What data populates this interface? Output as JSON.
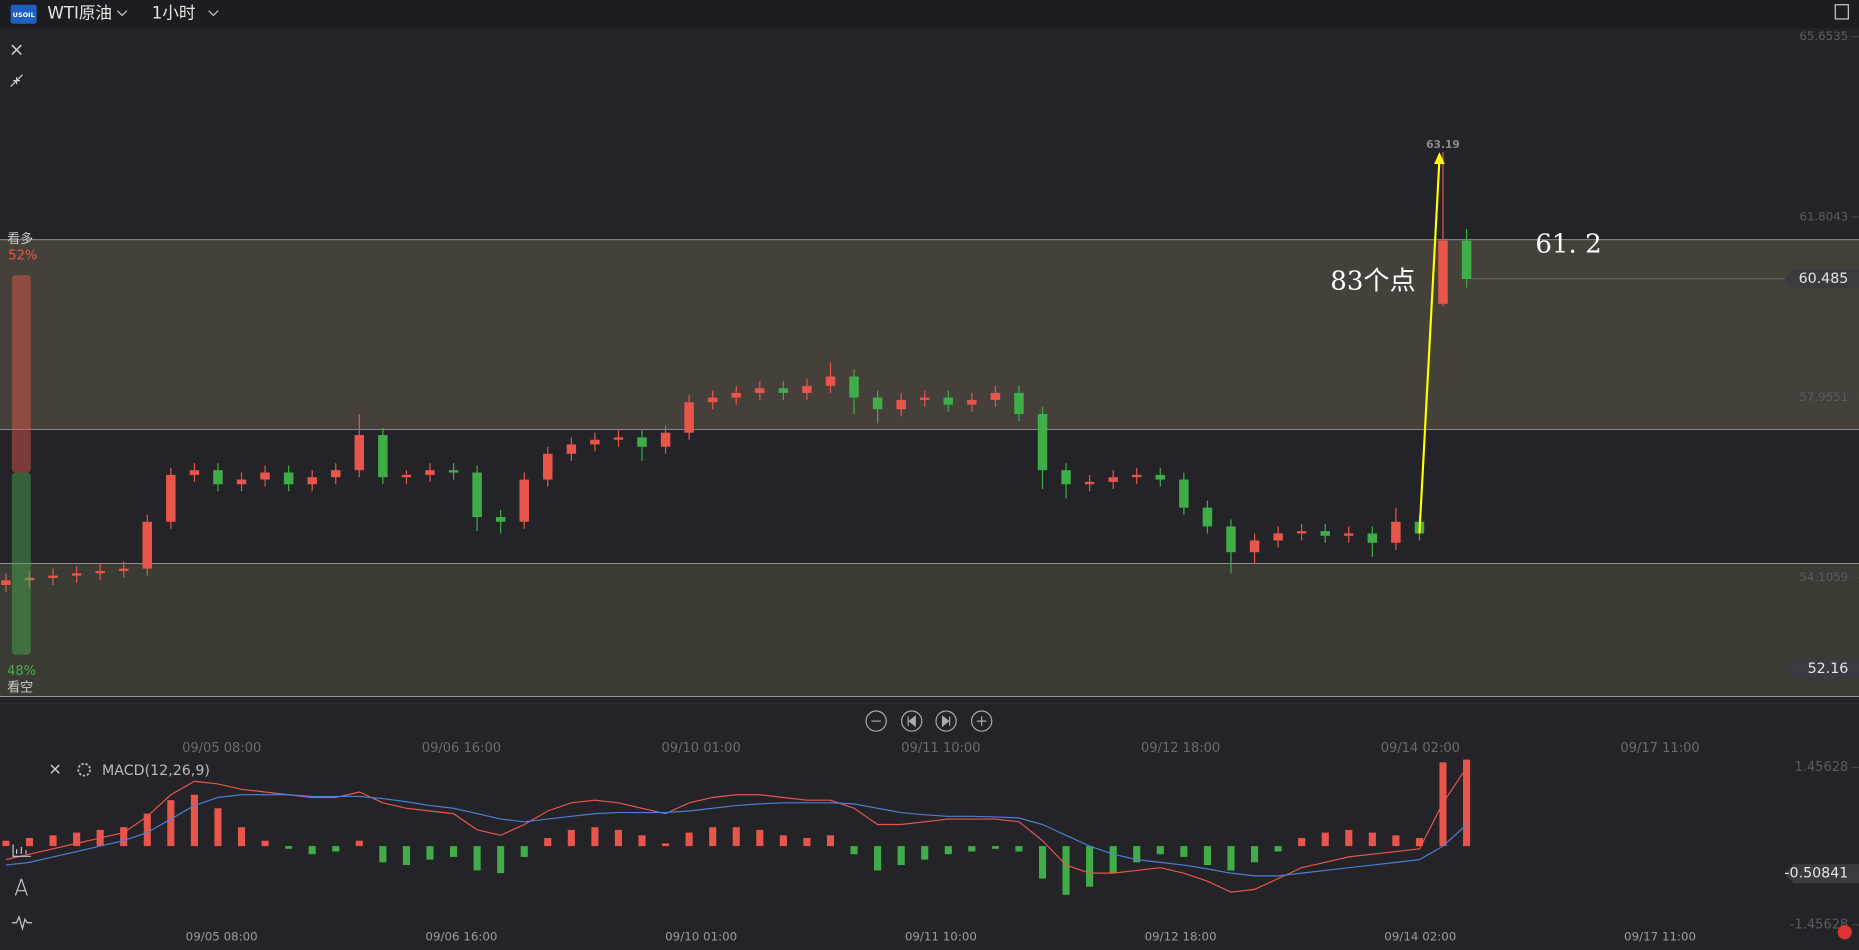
{
  "header": {
    "logo": "USOIL",
    "symbol": "WTI原油",
    "interval": "1小时"
  },
  "sentiment": {
    "type": "bar",
    "categories": [
      "看多",
      "看空"
    ],
    "values": [
      52,
      48
    ],
    "value_labels": [
      "52%",
      "48%"
    ],
    "colors": [
      "#e8564b",
      "#4caf50"
    ]
  },
  "chart_data": [
    {
      "type": "candlestick",
      "x_labels": [
        "09/05 08:00",
        "09/06 16:00",
        "09/10 01:00",
        "09/11 10:00",
        "09/12 18:00",
        "09/14 02:00",
        "09/17 11:00"
      ],
      "open": [
        53.95,
        54.05,
        54.1,
        54.15,
        54.2,
        54.25,
        54.3,
        55.3,
        56.3,
        56.4,
        56.1,
        56.2,
        56.35,
        56.1,
        56.25,
        56.4,
        57.15,
        56.25,
        56.3,
        56.4,
        56.35,
        55.4,
        55.3,
        56.2,
        56.75,
        56.95,
        57.05,
        57.1,
        56.9,
        57.2,
        57.85,
        57.95,
        58.05,
        58.15,
        58.05,
        58.2,
        58.4,
        57.95,
        57.7,
        57.9,
        57.95,
        57.8,
        57.9,
        58.05,
        57.6,
        56.4,
        56.1,
        56.15,
        56.25,
        56.3,
        56.2,
        55.6,
        55.2,
        54.65,
        54.9,
        55.05,
        55.1,
        55.0,
        55.05,
        54.85,
        55.3,
        59.95,
        61.3
      ],
      "high": [
        54.2,
        54.25,
        54.3,
        54.35,
        54.4,
        54.45,
        55.45,
        56.45,
        56.55,
        56.55,
        56.35,
        56.5,
        56.5,
        56.4,
        56.55,
        57.6,
        57.3,
        56.4,
        56.55,
        56.55,
        56.5,
        55.55,
        56.35,
        56.9,
        57.1,
        57.2,
        57.25,
        57.25,
        57.35,
        58.0,
        58.1,
        58.2,
        58.3,
        58.3,
        58.35,
        58.7,
        58.55,
        58.1,
        58.05,
        58.1,
        58.1,
        58.05,
        58.2,
        58.2,
        57.75,
        56.55,
        56.3,
        56.4,
        56.45,
        56.45,
        56.35,
        55.75,
        55.35,
        55.05,
        55.2,
        55.25,
        55.25,
        55.2,
        55.2,
        55.6,
        55.45,
        63.19,
        61.55
      ],
      "low": [
        53.8,
        53.9,
        53.95,
        54.0,
        54.05,
        54.1,
        54.15,
        55.15,
        56.15,
        55.95,
        55.95,
        56.05,
        55.95,
        55.95,
        56.1,
        56.25,
        56.1,
        56.1,
        56.15,
        56.2,
        55.1,
        55.05,
        55.15,
        56.05,
        56.6,
        56.8,
        56.9,
        56.6,
        56.75,
        57.05,
        57.7,
        57.8,
        57.9,
        57.9,
        57.9,
        58.05,
        57.6,
        57.4,
        57.55,
        57.75,
        57.65,
        57.65,
        57.75,
        57.45,
        56.0,
        55.8,
        55.95,
        56.0,
        56.1,
        56.05,
        55.45,
        55.05,
        54.2,
        54.4,
        54.75,
        54.9,
        54.85,
        54.85,
        54.55,
        54.7,
        54.9,
        59.9,
        60.3
      ],
      "close": [
        54.05,
        54.1,
        54.15,
        54.2,
        54.25,
        54.3,
        55.3,
        56.3,
        56.4,
        56.1,
        56.2,
        56.35,
        56.1,
        56.25,
        56.4,
        57.15,
        56.25,
        56.3,
        56.4,
        56.35,
        55.4,
        55.3,
        56.2,
        56.75,
        56.95,
        57.05,
        57.1,
        56.9,
        57.2,
        57.85,
        57.95,
        58.05,
        58.15,
        58.05,
        58.2,
        58.4,
        57.95,
        57.7,
        57.9,
        57.95,
        57.8,
        57.9,
        58.05,
        57.6,
        56.4,
        56.1,
        56.15,
        56.25,
        56.3,
        56.2,
        55.6,
        55.2,
        54.65,
        54.9,
        55.05,
        55.1,
        55.0,
        55.05,
        54.85,
        55.3,
        55.05,
        61.3,
        60.48
      ],
      "up_color": "#e8564b",
      "down_color": "#3fae49",
      "ylim": [
        51.5,
        65.93
      ],
      "yticks": [
        65.6535,
        61.8043,
        57.9551,
        54.1059
      ],
      "zones": [
        {
          "from": 57.27,
          "to": 61.32,
          "color": "#46403a"
        },
        {
          "from": 51.57,
          "to": 54.41,
          "color": "#3a3c34"
        }
      ],
      "current_price": 60.485,
      "low_price": 52.16,
      "arrow": {
        "from": 55.05,
        "to": 63.19,
        "color": "#ffff00"
      },
      "annotations": [
        "83个点",
        "61. 2"
      ]
    },
    {
      "type": "macd",
      "title": "MACD(12,26,9)",
      "histogram": [
        0.1,
        0.15,
        0.2,
        0.25,
        0.3,
        0.35,
        0.6,
        0.85,
        0.95,
        0.7,
        0.35,
        0.1,
        -0.05,
        -0.15,
        -0.1,
        0.1,
        -0.3,
        -0.35,
        -0.25,
        -0.2,
        -0.45,
        -0.5,
        -0.2,
        0.15,
        0.3,
        0.35,
        0.3,
        0.2,
        0.05,
        0.25,
        0.35,
        0.35,
        0.3,
        0.2,
        0.15,
        0.2,
        -0.15,
        -0.45,
        -0.35,
        -0.25,
        -0.15,
        -0.1,
        -0.05,
        -0.1,
        -0.6,
        -0.9,
        -0.75,
        -0.5,
        -0.3,
        -0.15,
        -0.2,
        -0.35,
        -0.45,
        -0.3,
        -0.1,
        0.15,
        0.25,
        0.3,
        0.25,
        0.2,
        0.15,
        1.55,
        1.6
      ],
      "dif": [
        -0.25,
        -0.15,
        -0.05,
        0.05,
        0.15,
        0.25,
        0.55,
        0.95,
        1.2,
        1.15,
        1.05,
        1.0,
        0.95,
        0.9,
        0.9,
        1.0,
        0.8,
        0.7,
        0.65,
        0.6,
        0.3,
        0.2,
        0.4,
        0.65,
        0.8,
        0.85,
        0.8,
        0.7,
        0.6,
        0.8,
        0.9,
        0.95,
        0.95,
        0.9,
        0.85,
        0.85,
        0.7,
        0.4,
        0.4,
        0.45,
        0.5,
        0.5,
        0.5,
        0.45,
        0.1,
        -0.35,
        -0.5,
        -0.5,
        -0.45,
        -0.4,
        -0.5,
        -0.65,
        -0.85,
        -0.8,
        -0.6,
        -0.4,
        -0.3,
        -0.2,
        -0.15,
        -0.1,
        -0.05,
        0.8,
        1.45
      ],
      "dea": [
        -0.35,
        -0.3,
        -0.2,
        -0.1,
        0.0,
        0.1,
        0.25,
        0.5,
        0.75,
        0.9,
        0.95,
        0.95,
        0.95,
        0.92,
        0.92,
        0.92,
        0.88,
        0.82,
        0.75,
        0.7,
        0.6,
        0.5,
        0.45,
        0.5,
        0.55,
        0.6,
        0.62,
        0.62,
        0.62,
        0.65,
        0.7,
        0.75,
        0.78,
        0.8,
        0.8,
        0.8,
        0.78,
        0.7,
        0.62,
        0.58,
        0.55,
        0.55,
        0.54,
        0.52,
        0.4,
        0.2,
        0.0,
        -0.15,
        -0.25,
        -0.3,
        -0.35,
        -0.42,
        -0.5,
        -0.55,
        -0.55,
        -0.5,
        -0.45,
        -0.4,
        -0.35,
        -0.3,
        -0.25,
        0.0,
        0.4
      ],
      "dif_color": "#e8564b",
      "dea_color": "#4a7fd6",
      "up_color": "#e8564b",
      "down_color": "#3fae49",
      "ylim": [
        -1.68,
        1.61
      ],
      "yticks": [
        1.45628,
        -1.45628
      ],
      "current": -0.50841
    }
  ]
}
